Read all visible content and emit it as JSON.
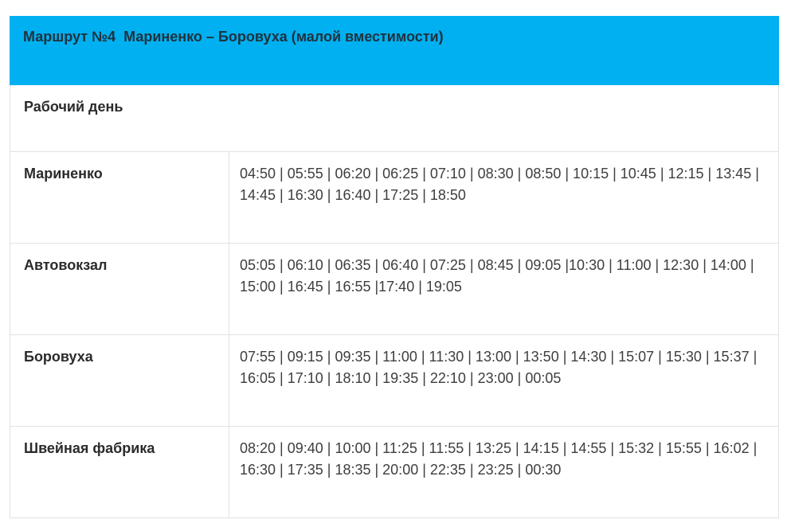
{
  "route_header": {
    "title": "Маршрут №4  Мариненко – Боровуха (малой вместимости)",
    "background": "#00b0f0"
  },
  "schedule": {
    "day_type": "Рабочий день",
    "stops": [
      {
        "name": "Мариненко",
        "times": [
          "04:50",
          "05:55",
          "06:20",
          "06:25",
          "07:10",
          "08:30",
          "08:50",
          "10:15",
          "10:45",
          "12:15",
          "13:45",
          "14:45",
          "16:30",
          "16:40",
          "17:25",
          "18:50"
        ],
        "times_display": "04:50 | 05:55 | 06:20 | 06:25 | 07:10 | 08:30 | 08:50 | 10:15 | 10:45 | 12:15 | 13:45 | 14:45 | 16:30 | 16:40 | 17:25 | 18:50"
      },
      {
        "name": "Автовокзал",
        "times": [
          "05:05",
          "06:10",
          "06:35",
          "06:40",
          "07:25",
          "08:45",
          "09:05",
          "10:30",
          "11:00",
          "12:30",
          "14:00",
          "15:00",
          "16:45",
          "16:55",
          "17:40",
          "19:05"
        ],
        "times_display": "05:05 | 06:10 | 06:35 | 06:40 | 07:25 | 08:45 | 09:05 |10:30 | 11:00 | 12:30 | 14:00 | 15:00 | 16:45 | 16:55 |17:40 | 19:05"
      },
      {
        "name": "Боровуха",
        "times": [
          "07:55",
          "09:15",
          "09:35",
          "11:00",
          "11:30",
          "13:00",
          "13:50",
          "14:30",
          "15:07",
          "15:30",
          "15:37",
          "16:05",
          "17:10",
          "18:10",
          "19:35",
          "22:10",
          "23:00",
          "00:05"
        ],
        "times_display": "07:55 | 09:15 | 09:35 | 11:00 | 11:30 | 13:00 | 13:50 | 14:30 | 15:07 | 15:30 | 15:37 | 16:05 | 17:10 | 18:10 | 19:35 | 22:10 | 23:00 | 00:05"
      },
      {
        "name": "Швейная фабрика",
        "times": [
          "08:20",
          "09:40",
          "10:00",
          "11:25",
          "11:55",
          "13:25",
          "14:15",
          "14:55",
          "15:32",
          "15:55",
          "16:02",
          "16:30",
          "17:35",
          "18:35",
          "20:00",
          "22:35",
          "23:25",
          "00:30"
        ],
        "times_display": "08:20 | 09:40 | 10:00 | 11:25 | 11:55 | 13:25 | 14:15 | 14:55 | 15:32 | 15:55 | 16:02 | 16:30 | 17:35 | 18:35 | 20:00 | 22:35 | 23:25 | 00:30"
      }
    ]
  }
}
